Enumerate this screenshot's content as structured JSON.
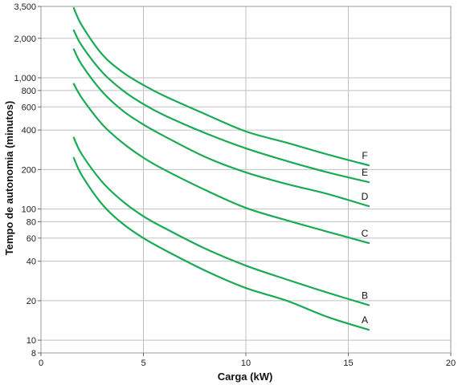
{
  "chart_data": {
    "type": "line",
    "title": "",
    "xlabel": "Carga (kW)",
    "ylabel": "Tempo de autonomia (minutos)",
    "xlim": [
      0,
      20
    ],
    "ylim": [
      8,
      3500
    ],
    "yscale": "log",
    "grid": true,
    "line_color": "#1aaa55",
    "x_ticks": [
      0,
      5,
      10,
      15,
      20
    ],
    "x_tick_labels": [
      "0",
      "5",
      "10",
      "15",
      "20"
    ],
    "y_ticks": [
      8,
      10,
      20,
      40,
      60,
      80,
      100,
      200,
      400,
      600,
      800,
      1000,
      2000,
      3500
    ],
    "y_tick_labels": [
      "8",
      "10",
      "20",
      "40",
      "60",
      "80",
      "100",
      "200",
      "400",
      "600",
      "800",
      "1,000",
      "2,000",
      "3,500"
    ],
    "series": [
      {
        "name": "A",
        "x": [
          1.6,
          2,
          3,
          4,
          5,
          6,
          8,
          10,
          12,
          14,
          16
        ],
        "values": [
          245,
          180,
          108,
          77,
          60,
          49,
          34,
          25,
          20,
          15,
          12
        ]
      },
      {
        "name": "B",
        "x": [
          1.6,
          2,
          3,
          4,
          5,
          6,
          8,
          10,
          12,
          14,
          16
        ],
        "values": [
          350,
          260,
          160,
          114,
          88,
          72,
          50,
          37,
          29,
          23,
          18.5
        ]
      },
      {
        "name": "C",
        "x": [
          1.6,
          2,
          3,
          4,
          5,
          6,
          8,
          10,
          12,
          14,
          16
        ],
        "values": [
          900,
          700,
          440,
          318,
          246,
          200,
          140,
          102,
          82,
          67,
          55
        ]
      },
      {
        "name": "D",
        "x": [
          1.6,
          2,
          3,
          4,
          5,
          6,
          8,
          10,
          12,
          14,
          16
        ],
        "values": [
          1650,
          1250,
          780,
          560,
          440,
          360,
          250,
          190,
          155,
          130,
          105
        ]
      },
      {
        "name": "E",
        "x": [
          1.6,
          2,
          3,
          4,
          5,
          6,
          8,
          10,
          12,
          14,
          16
        ],
        "values": [
          2300,
          1750,
          1100,
          800,
          630,
          520,
          380,
          290,
          232,
          190,
          160
        ]
      },
      {
        "name": "F",
        "x": [
          1.6,
          2,
          3,
          4,
          5,
          6,
          8,
          10,
          12,
          14,
          16
        ],
        "values": [
          3400,
          2500,
          1500,
          1100,
          880,
          730,
          530,
          390,
          320,
          260,
          215
        ]
      }
    ]
  }
}
